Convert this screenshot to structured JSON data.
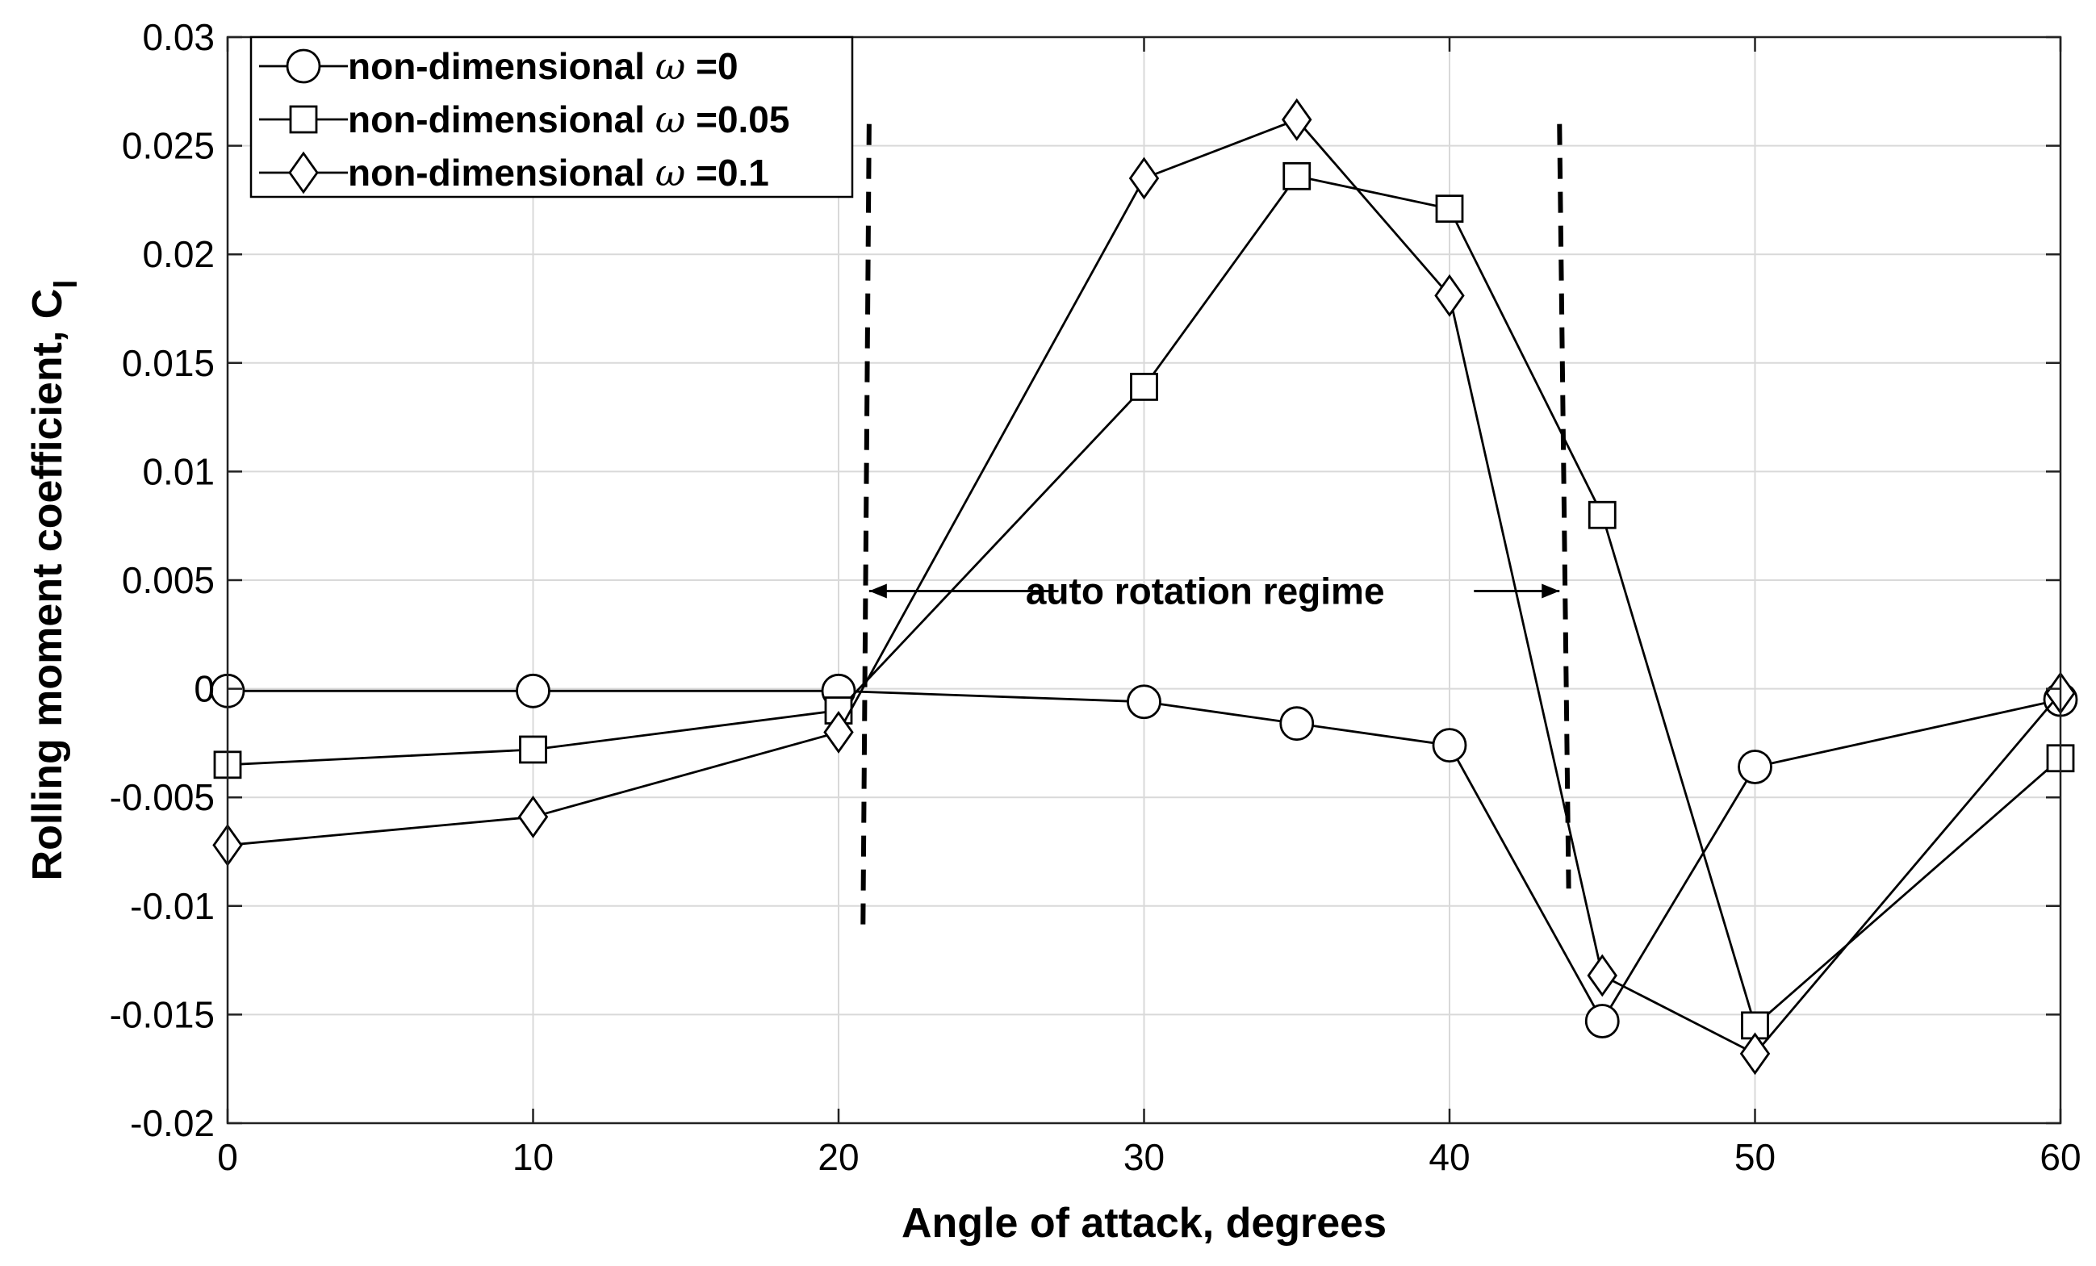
{
  "chart_data": {
    "type": "line",
    "title": "",
    "xlabel": "Angle of attack, degrees",
    "ylabel": "Rolling moment coefficient, C",
    "ylabel_subscript": "l",
    "xlim": [
      0,
      60
    ],
    "ylim": [
      -0.02,
      0.03
    ],
    "xticks": [
      0,
      10,
      20,
      30,
      40,
      50,
      60
    ],
    "yticks": [
      -0.02,
      -0.015,
      -0.01,
      -0.005,
      0,
      0.005,
      0.01,
      0.015,
      0.02,
      0.025,
      0.03
    ],
    "xtick_labels": [
      "0",
      "10",
      "20",
      "30",
      "40",
      "50",
      "60"
    ],
    "ytick_labels": [
      "-0.02",
      "-0.015",
      "-0.01",
      "-0.005",
      "0",
      "0.005",
      "0.01",
      "0.015",
      "0.02",
      "0.025",
      "0.03"
    ],
    "grid": true,
    "legend_position": "top-left",
    "series": [
      {
        "name": "non-dimensional ω =0",
        "legend_prefix": "non-dimensional ",
        "legend_symbol": "ω",
        "legend_suffix": " =0",
        "marker": "circle",
        "x": [
          0,
          10,
          20,
          30,
          35,
          40,
          45,
          50,
          60
        ],
        "y": [
          -0.0001,
          -0.0001,
          -0.0001,
          -0.0006,
          -0.0016,
          -0.0026,
          -0.0153,
          -0.0036,
          -0.0005
        ]
      },
      {
        "name": "non-dimensional ω =0.05",
        "legend_prefix": "non-dimensional ",
        "legend_symbol": "ω",
        "legend_suffix": " =0.05",
        "marker": "square",
        "x": [
          0,
          10,
          20,
          30,
          35,
          40,
          45,
          50,
          60
        ],
        "y": [
          -0.0035,
          -0.0028,
          -0.001,
          0.0139,
          0.0236,
          0.0221,
          0.008,
          -0.0155,
          -0.0032
        ]
      },
      {
        "name": "non-dimensional ω =0.1",
        "legend_prefix": "non-dimensional ",
        "legend_symbol": "ω",
        "legend_suffix": " =0.1",
        "marker": "diamond",
        "x": [
          0,
          10,
          20,
          30,
          35,
          40,
          45,
          50,
          60
        ],
        "y": [
          -0.0072,
          -0.0059,
          -0.002,
          0.0235,
          0.0262,
          0.0181,
          -0.0132,
          -0.0168,
          -0.0002
        ]
      }
    ],
    "annotations": [
      {
        "text": "auto rotation regime",
        "x": 32,
        "y": 0.0045
      }
    ],
    "regime_bounds": [
      {
        "x": [
          21.0,
          20.8
        ],
        "y": [
          0.026,
          -0.011
        ]
      },
      {
        "x": [
          43.6,
          43.9
        ],
        "y": [
          0.026,
          -0.0092
        ]
      }
    ],
    "regime_arrows": [
      {
        "from_x": 27.2,
        "to_x": 21.0,
        "y": 0.0045
      },
      {
        "from_x": 40.8,
        "to_x": 43.6,
        "y": 0.0045
      }
    ]
  }
}
